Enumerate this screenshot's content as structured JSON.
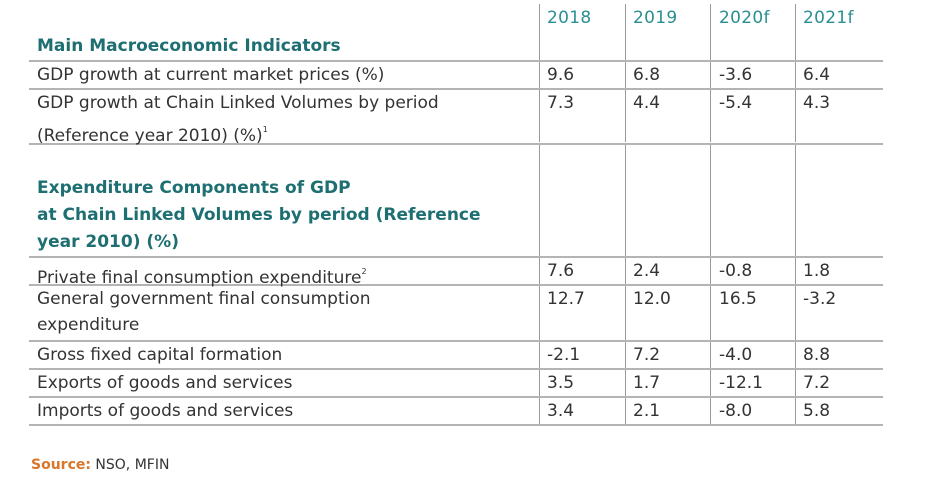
{
  "columns": [
    "2018",
    "2019",
    "2020f",
    "2021f"
  ],
  "section1": {
    "title": "Main Macroeconomic Indicators",
    "rows": [
      {
        "label": "GDP growth at current market prices (%)",
        "sup": "",
        "values": [
          "9.6",
          "6.8",
          "-3.6",
          "6.4"
        ]
      },
      {
        "label": "GDP growth at Chain Linked Volumes by period",
        "label2": "(Reference year 2010) (%)",
        "sup": "1",
        "values": [
          "7.3",
          "4.4",
          "-5.4",
          "4.3"
        ]
      }
    ]
  },
  "section2": {
    "title_lines": [
      "Expenditure Components of GDP",
      "at Chain Linked Volumes by period (Reference",
      "year 2010) (%)"
    ],
    "rows": [
      {
        "label": "Private final consumption expenditure",
        "sup": "2",
        "values": [
          "7.6",
          "2.4",
          "-0.8",
          "1.8"
        ]
      },
      {
        "label": "General government final consumption",
        "label2": "expenditure",
        "sup": "",
        "values": [
          "12.7",
          "12.0",
          "16.5",
          "-3.2"
        ]
      },
      {
        "label": "Gross fixed capital formation",
        "sup": "",
        "values": [
          "-2.1",
          "7.2",
          "-4.0",
          "8.8"
        ]
      },
      {
        "label": "Exports of goods and services",
        "sup": "",
        "values": [
          "3.5",
          "1.7",
          "-12.1",
          "7.2"
        ]
      },
      {
        "label": "Imports of goods and services",
        "sup": "",
        "values": [
          "3.4",
          "2.1",
          "-8.0",
          "5.8"
        ]
      }
    ]
  },
  "source": {
    "key": "Source:",
    "text": "NSO, MFIN"
  }
}
